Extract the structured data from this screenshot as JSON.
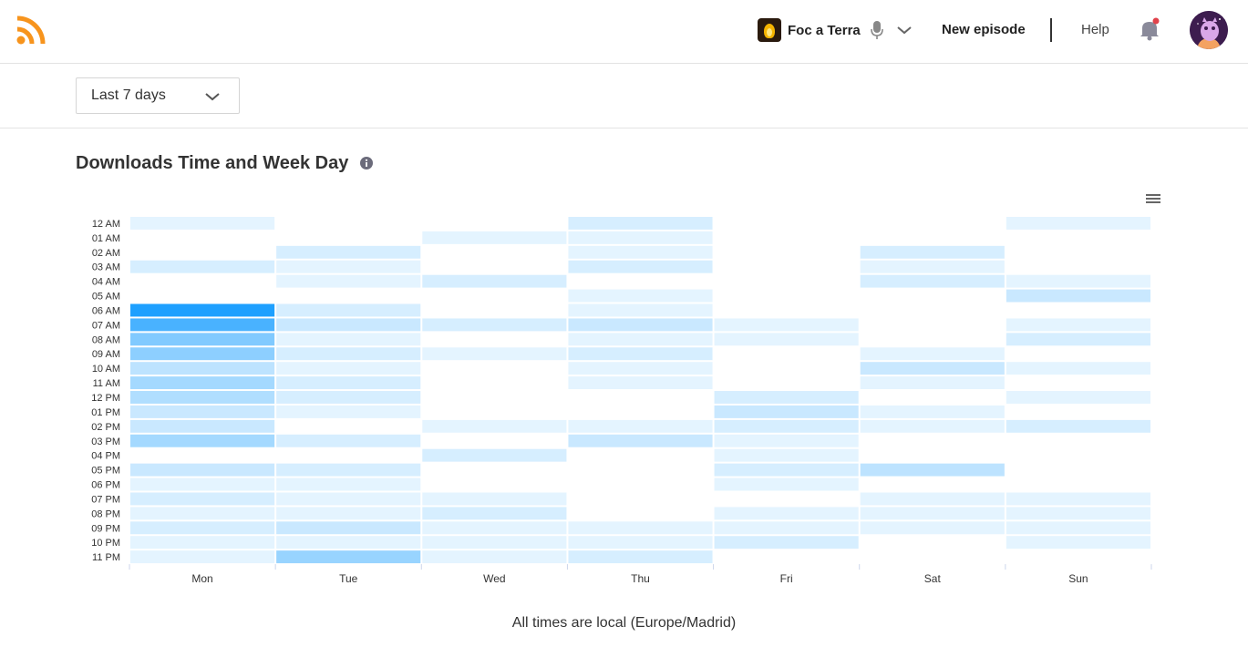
{
  "header": {
    "podcast_name": "Foc a Terra",
    "new_episode_label": "New episode",
    "help_label": "Help"
  },
  "filter": {
    "period_value": "Last 7 days"
  },
  "section": {
    "title": "Downloads Time and Week Day"
  },
  "footnote": "All times are local (Europe/Madrid)",
  "colors": {
    "accent": "#1ea0ff",
    "rss": "#f7941d",
    "notification_dot": "#e0424b"
  },
  "chart_data": {
    "type": "heatmap",
    "x": [
      "Mon",
      "Tue",
      "Wed",
      "Thu",
      "Fri",
      "Sat",
      "Sun"
    ],
    "y": [
      "12 AM",
      "01 AM",
      "02 AM",
      "03 AM",
      "04 AM",
      "05 AM",
      "06 AM",
      "07 AM",
      "08 AM",
      "09 AM",
      "10 AM",
      "11 AM",
      "12 PM",
      "01 PM",
      "02 PM",
      "03 PM",
      "04 PM",
      "05 PM",
      "06 PM",
      "07 PM",
      "08 PM",
      "09 PM",
      "10 PM",
      "11 PM"
    ],
    "values": [
      [
        1,
        0,
        0,
        2,
        0,
        0,
        1
      ],
      [
        0,
        0,
        1,
        1,
        0,
        0,
        0
      ],
      [
        0,
        2,
        0,
        1,
        0,
        2,
        0
      ],
      [
        2,
        1,
        0,
        2,
        0,
        1,
        0
      ],
      [
        0,
        1,
        2,
        0,
        0,
        2,
        1
      ],
      [
        0,
        0,
        0,
        1,
        0,
        0,
        3
      ],
      [
        18,
        2,
        0,
        1,
        0,
        0,
        0
      ],
      [
        14,
        3,
        2,
        3,
        1,
        0,
        1
      ],
      [
        9,
        1,
        0,
        1,
        1,
        0,
        2
      ],
      [
        8,
        2,
        1,
        2,
        0,
        1,
        0
      ],
      [
        4,
        1,
        0,
        1,
        0,
        3,
        1
      ],
      [
        6,
        2,
        0,
        1,
        0,
        1,
        0
      ],
      [
        5,
        2,
        0,
        0,
        2,
        0,
        1
      ],
      [
        3,
        1,
        0,
        0,
        3,
        1,
        0
      ],
      [
        3,
        0,
        1,
        1,
        2,
        1,
        2
      ],
      [
        6,
        2,
        0,
        3,
        1,
        0,
        0
      ],
      [
        0,
        0,
        2,
        0,
        1,
        0,
        0
      ],
      [
        3,
        2,
        0,
        0,
        2,
        4,
        0
      ],
      [
        1,
        1,
        0,
        0,
        1,
        0,
        0
      ],
      [
        2,
        1,
        1,
        0,
        0,
        1,
        1
      ],
      [
        1,
        1,
        2,
        0,
        1,
        1,
        1
      ],
      [
        2,
        3,
        1,
        1,
        1,
        1,
        1
      ],
      [
        1,
        1,
        1,
        1,
        2,
        0,
        1
      ],
      [
        1,
        7,
        1,
        2,
        0,
        0,
        0
      ]
    ],
    "max_color": "#1ea0ff",
    "grid": false
  }
}
